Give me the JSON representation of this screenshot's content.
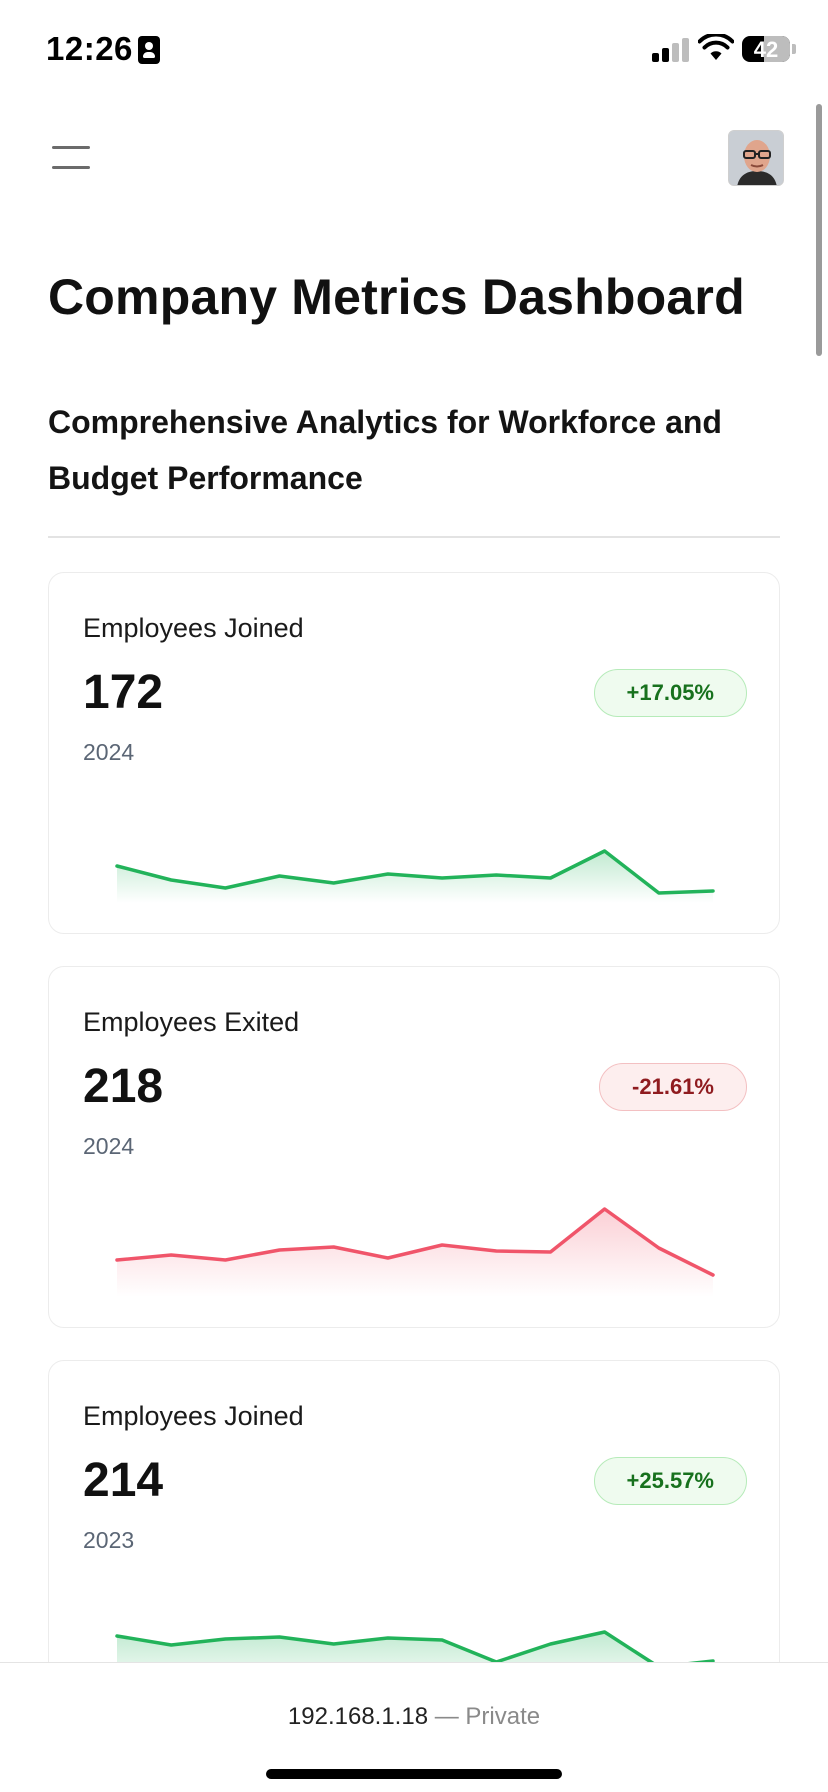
{
  "status_bar": {
    "time": "12:26",
    "battery": "42",
    "icons": [
      "id-card-icon",
      "cellular-signal-icon",
      "wifi-icon",
      "battery-icon"
    ]
  },
  "header": {
    "menu_icon": "hamburger-menu-icon",
    "avatar_icon": "user-avatar"
  },
  "page": {
    "title": "Company Metrics Dashboard",
    "subtitle": "Comprehensive Analytics for Workforce and Budget Performance"
  },
  "cards": [
    {
      "label": "Employees Joined",
      "value": "172",
      "year": "2024",
      "change": "+17.05%",
      "trend": "positive",
      "color": "#22b35a",
      "sparkline": [
        0.63,
        0.77,
        0.85,
        0.73,
        0.8,
        0.71,
        0.75,
        0.72,
        0.75,
        0.48,
        0.9,
        0.88
      ]
    },
    {
      "label": "Employees Exited",
      "value": "218",
      "year": "2024",
      "change": "-21.61%",
      "trend": "negative",
      "color": "#f0556a",
      "sparkline": [
        0.63,
        0.58,
        0.63,
        0.53,
        0.5,
        0.61,
        0.48,
        0.54,
        0.55,
        0.12,
        0.51,
        0.78
      ]
    },
    {
      "label": "Employees Joined",
      "value": "214",
      "year": "2023",
      "change": "+25.57%",
      "trend": "positive",
      "color": "#22b35a",
      "sparkline": [
        0.45,
        0.54,
        0.48,
        0.46,
        0.53,
        0.47,
        0.49,
        0.71,
        0.53,
        0.41,
        0.76,
        0.7
      ]
    }
  ],
  "address_bar": {
    "host": "192.168.1.18",
    "separator": "—",
    "privacy": "Private"
  }
}
